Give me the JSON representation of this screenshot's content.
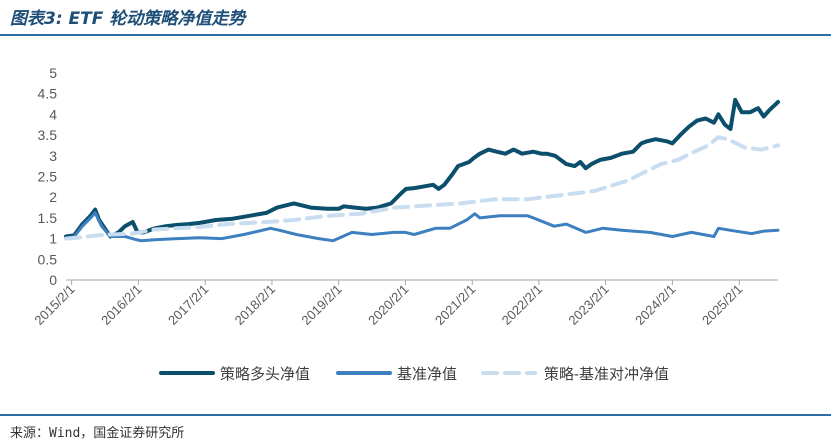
{
  "figure_title": "图表3: ETF 轮动策略净值走势",
  "source_note": "来源：Wind，国金证券研究所",
  "chart_data": {
    "type": "line",
    "title": "",
    "xlabel": "",
    "ylabel": "",
    "ylim": [
      0,
      5
    ],
    "yticks": [
      "0",
      "0.5",
      "1",
      "1.5",
      "2",
      "2.5",
      "3",
      "3.5",
      "4",
      "4.5",
      "5"
    ],
    "xlim": [
      "2015-01-01",
      "2025-09-01"
    ],
    "xticks": [
      {
        "date": "2015-02-01",
        "label": "2015/2/1"
      },
      {
        "date": "2016-02-01",
        "label": "2016/2/1"
      },
      {
        "date": "2017-02-01",
        "label": "2017/2/1"
      },
      {
        "date": "2018-02-01",
        "label": "2018/2/1"
      },
      {
        "date": "2019-02-01",
        "label": "2019/2/1"
      },
      {
        "date": "2020-02-01",
        "label": "2020/2/1"
      },
      {
        "date": "2021-02-01",
        "label": "2021/2/1"
      },
      {
        "date": "2022-02-01",
        "label": "2022/2/1"
      },
      {
        "date": "2023-02-01",
        "label": "2023/2/1"
      },
      {
        "date": "2024-02-01",
        "label": "2024/2/1"
      },
      {
        "date": "2025-02-01",
        "label": "2025/2/1"
      }
    ],
    "grid": false,
    "legend_position": "bottom",
    "series": [
      {
        "name": "策略多头净值",
        "color": "#0b4f6c",
        "style": "solid",
        "points": [
          [
            "2015-01-01",
            1.05
          ],
          [
            "2015-02-15",
            1.08
          ],
          [
            "2015-04-01",
            1.35
          ],
          [
            "2015-05-15",
            1.55
          ],
          [
            "2015-06-10",
            1.7
          ],
          [
            "2015-07-01",
            1.45
          ],
          [
            "2015-08-01",
            1.25
          ],
          [
            "2015-09-01",
            1.05
          ],
          [
            "2015-10-15",
            1.15
          ],
          [
            "2015-11-20",
            1.3
          ],
          [
            "2016-01-01",
            1.4
          ],
          [
            "2016-01-28",
            1.15
          ],
          [
            "2016-03-01",
            1.15
          ],
          [
            "2016-05-01",
            1.25
          ],
          [
            "2016-07-01",
            1.3
          ],
          [
            "2016-09-01",
            1.33
          ],
          [
            "2016-11-01",
            1.35
          ],
          [
            "2017-01-01",
            1.38
          ],
          [
            "2017-04-01",
            1.45
          ],
          [
            "2017-07-01",
            1.48
          ],
          [
            "2017-10-01",
            1.55
          ],
          [
            "2018-01-01",
            1.62
          ],
          [
            "2018-03-01",
            1.75
          ],
          [
            "2018-06-01",
            1.85
          ],
          [
            "2018-09-01",
            1.75
          ],
          [
            "2018-12-01",
            1.72
          ],
          [
            "2019-02-01",
            1.72
          ],
          [
            "2019-03-01",
            1.78
          ],
          [
            "2019-05-01",
            1.75
          ],
          [
            "2019-07-01",
            1.72
          ],
          [
            "2019-09-01",
            1.75
          ],
          [
            "2019-11-15",
            1.85
          ],
          [
            "2020-01-10",
            2.1
          ],
          [
            "2020-02-05",
            2.2
          ],
          [
            "2020-03-20",
            2.22
          ],
          [
            "2020-05-01",
            2.25
          ],
          [
            "2020-07-01",
            2.3
          ],
          [
            "2020-08-01",
            2.2
          ],
          [
            "2020-09-01",
            2.3
          ],
          [
            "2020-10-15",
            2.55
          ],
          [
            "2020-11-15",
            2.75
          ],
          [
            "2021-01-15",
            2.85
          ],
          [
            "2021-02-10",
            2.95
          ],
          [
            "2021-03-15",
            3.05
          ],
          [
            "2021-05-01",
            3.15
          ],
          [
            "2021-06-15",
            3.1
          ],
          [
            "2021-08-01",
            3.05
          ],
          [
            "2021-09-15",
            3.15
          ],
          [
            "2021-11-01",
            3.05
          ],
          [
            "2022-01-01",
            3.1
          ],
          [
            "2022-02-15",
            3.05
          ],
          [
            "2022-03-15",
            3.05
          ],
          [
            "2022-05-01",
            3.0
          ],
          [
            "2022-07-01",
            2.8
          ],
          [
            "2022-08-15",
            2.75
          ],
          [
            "2022-09-15",
            2.85
          ],
          [
            "2022-10-15",
            2.7
          ],
          [
            "2022-11-15",
            2.8
          ],
          [
            "2023-01-01",
            2.9
          ],
          [
            "2023-03-01",
            2.95
          ],
          [
            "2023-05-01",
            3.05
          ],
          [
            "2023-07-01",
            3.1
          ],
          [
            "2023-08-15",
            3.3
          ],
          [
            "2023-09-15",
            3.35
          ],
          [
            "2023-11-01",
            3.4
          ],
          [
            "2024-01-01",
            3.35
          ],
          [
            "2024-02-01",
            3.3
          ],
          [
            "2024-03-15",
            3.5
          ],
          [
            "2024-05-01",
            3.7
          ],
          [
            "2024-06-15",
            3.85
          ],
          [
            "2024-08-01",
            3.9
          ],
          [
            "2024-09-15",
            3.8
          ],
          [
            "2024-10-10",
            4.0
          ],
          [
            "2024-11-15",
            3.75
          ],
          [
            "2024-12-15",
            3.65
          ],
          [
            "2025-01-10",
            4.35
          ],
          [
            "2025-02-15",
            4.05
          ],
          [
            "2025-04-01",
            4.05
          ],
          [
            "2025-05-15",
            4.15
          ],
          [
            "2025-06-15",
            3.95
          ],
          [
            "2025-07-15",
            4.1
          ],
          [
            "2025-09-01",
            4.3
          ]
        ]
      },
      {
        "name": "基准净值",
        "color": "#3d7fbf",
        "style": "solid",
        "points": [
          [
            "2015-01-01",
            1.0
          ],
          [
            "2015-02-15",
            1.05
          ],
          [
            "2015-04-01",
            1.3
          ],
          [
            "2015-05-15",
            1.5
          ],
          [
            "2015-06-10",
            1.62
          ],
          [
            "2015-07-15",
            1.3
          ],
          [
            "2015-09-01",
            1.05
          ],
          [
            "2015-10-15",
            1.05
          ],
          [
            "2015-11-20",
            1.05
          ],
          [
            "2016-01-15",
            0.98
          ],
          [
            "2016-02-15",
            0.95
          ],
          [
            "2016-05-01",
            0.97
          ],
          [
            "2016-09-01",
            1.0
          ],
          [
            "2017-01-01",
            1.02
          ],
          [
            "2017-05-01",
            1.0
          ],
          [
            "2017-09-01",
            1.1
          ],
          [
            "2018-01-25",
            1.25
          ],
          [
            "2018-03-15",
            1.2
          ],
          [
            "2018-06-15",
            1.1
          ],
          [
            "2018-10-15",
            1.0
          ],
          [
            "2019-01-01",
            0.95
          ],
          [
            "2019-04-15",
            1.15
          ],
          [
            "2019-08-01",
            1.1
          ],
          [
            "2019-12-01",
            1.15
          ],
          [
            "2020-02-01",
            1.15
          ],
          [
            "2020-03-20",
            1.1
          ],
          [
            "2020-07-15",
            1.25
          ],
          [
            "2020-10-01",
            1.25
          ],
          [
            "2021-01-01",
            1.45
          ],
          [
            "2021-02-15",
            1.6
          ],
          [
            "2021-03-15",
            1.5
          ],
          [
            "2021-07-01",
            1.55
          ],
          [
            "2021-12-01",
            1.55
          ],
          [
            "2022-01-01",
            1.5
          ],
          [
            "2022-04-25",
            1.3
          ],
          [
            "2022-07-01",
            1.35
          ],
          [
            "2022-10-15",
            1.15
          ],
          [
            "2023-01-15",
            1.25
          ],
          [
            "2023-05-01",
            1.2
          ],
          [
            "2023-10-01",
            1.15
          ],
          [
            "2024-02-01",
            1.05
          ],
          [
            "2024-05-15",
            1.15
          ],
          [
            "2024-09-15",
            1.05
          ],
          [
            "2024-10-10",
            1.25
          ],
          [
            "2024-12-15",
            1.2
          ],
          [
            "2025-04-10",
            1.12
          ],
          [
            "2025-06-15",
            1.18
          ],
          [
            "2025-09-01",
            1.2
          ]
        ]
      },
      {
        "name": "策略-基准对冲净值",
        "color": "#c9ddf0",
        "style": "dashed",
        "points": [
          [
            "2015-01-01",
            1.0
          ],
          [
            "2015-03-01",
            1.02
          ],
          [
            "2015-05-01",
            1.05
          ],
          [
            "2015-07-01",
            1.08
          ],
          [
            "2015-09-01",
            1.1
          ],
          [
            "2016-01-01",
            1.12
          ],
          [
            "2016-05-01",
            1.22
          ],
          [
            "2016-09-01",
            1.25
          ],
          [
            "2017-01-01",
            1.28
          ],
          [
            "2017-06-01",
            1.35
          ],
          [
            "2018-01-01",
            1.4
          ],
          [
            "2018-06-01",
            1.45
          ],
          [
            "2018-12-01",
            1.55
          ],
          [
            "2019-06-01",
            1.6
          ],
          [
            "2019-12-01",
            1.75
          ],
          [
            "2020-06-01",
            1.8
          ],
          [
            "2020-12-01",
            1.85
          ],
          [
            "2021-06-01",
            1.95
          ],
          [
            "2021-12-01",
            1.95
          ],
          [
            "2022-06-01",
            2.05
          ],
          [
            "2022-12-01",
            2.15
          ],
          [
            "2023-06-01",
            2.4
          ],
          [
            "2023-12-01",
            2.8
          ],
          [
            "2024-03-01",
            2.9
          ],
          [
            "2024-06-01",
            3.1
          ],
          [
            "2024-08-15",
            3.25
          ],
          [
            "2024-10-10",
            3.45
          ],
          [
            "2024-12-01",
            3.4
          ],
          [
            "2025-01-15",
            3.3
          ],
          [
            "2025-03-01",
            3.2
          ],
          [
            "2025-06-01",
            3.15
          ],
          [
            "2025-09-01",
            3.25
          ]
        ]
      }
    ]
  }
}
